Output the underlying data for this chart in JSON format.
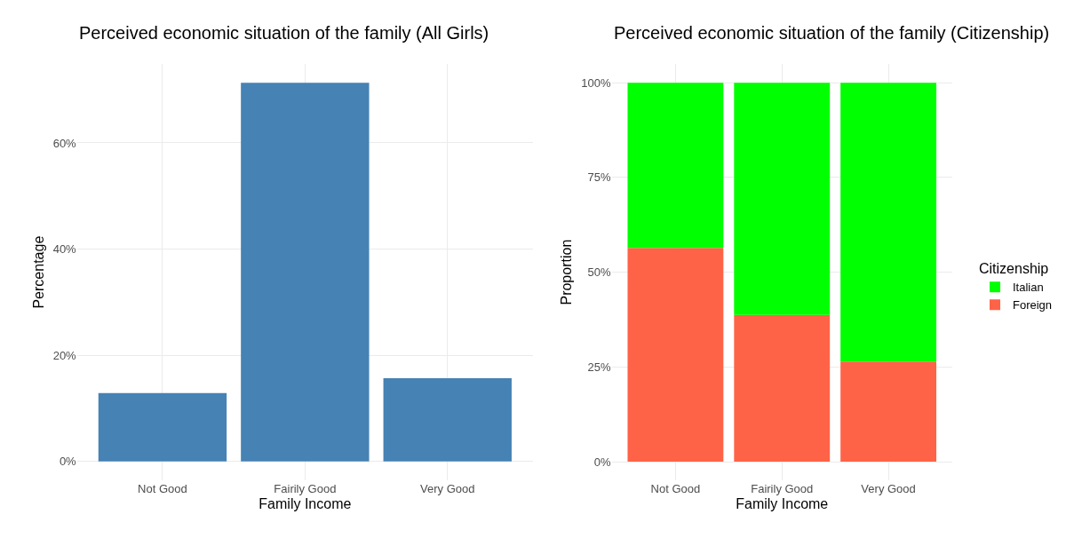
{
  "chart_data": [
    {
      "type": "bar",
      "title": "Perceived economic situation of the family (All Girls)",
      "xlabel": "Family Income",
      "ylabel": "Percentage",
      "categories": [
        "Not Good",
        "Fairily Good",
        "Very Good"
      ],
      "series": [
        {
          "color": "#4682b4",
          "values": [
            12.9,
            71.3,
            15.7
          ]
        }
      ],
      "ylim": [
        -3.6,
        74.9
      ],
      "yticks": [
        {
          "value": 0,
          "label": "0%"
        },
        {
          "value": 20,
          "label": "20%"
        },
        {
          "value": 40,
          "label": "40%"
        },
        {
          "value": 60,
          "label": "60%"
        }
      ],
      "grid": true,
      "legend": false
    },
    {
      "type": "bar",
      "title": "Perceived economic situation of the family (Citizenship)",
      "xlabel": "Family Income",
      "ylabel": "Proportion",
      "legend_title": "Citizenship",
      "categories": [
        "Not Good",
        "Fairily Good",
        "Very Good"
      ],
      "stacked": true,
      "series": [
        {
          "name": "Foreign",
          "color": "#ff6347",
          "values": [
            56.4,
            38.7,
            26.4
          ]
        },
        {
          "name": "Italian",
          "color": "#00ff00",
          "values": [
            43.6,
            61.3,
            73.6
          ]
        }
      ],
      "ylim": [
        -5,
        105
      ],
      "yticks": [
        {
          "value": 0,
          "label": "0%"
        },
        {
          "value": 25,
          "label": "25%"
        },
        {
          "value": 50,
          "label": "50%"
        },
        {
          "value": 75,
          "label": "75%"
        },
        {
          "value": 100,
          "label": "100%"
        }
      ],
      "grid": true,
      "legend": "right"
    }
  ]
}
